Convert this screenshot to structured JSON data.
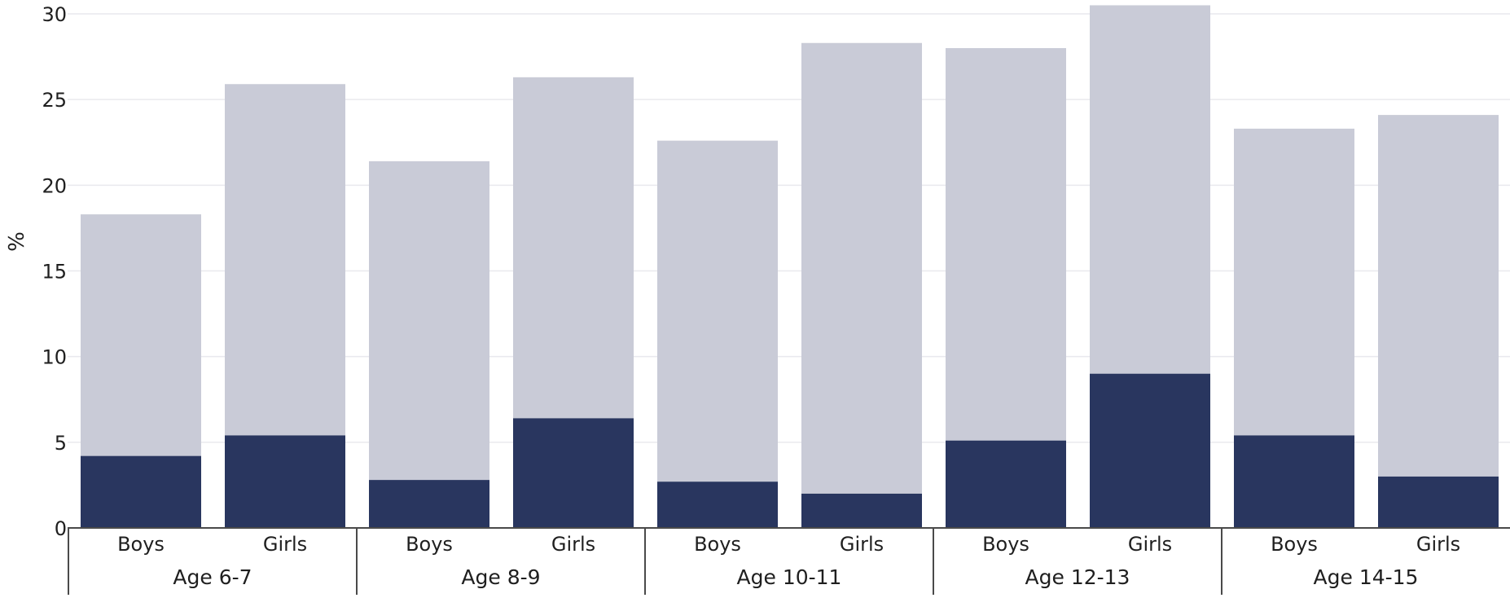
{
  "chart_data": {
    "type": "bar",
    "stacked": true,
    "ylabel": "%",
    "ylim": [
      0,
      30
    ],
    "yticks": [
      0,
      5,
      10,
      15,
      20,
      25,
      30
    ],
    "grid": true,
    "groups": [
      {
        "label": "Age 6-7",
        "bars": [
          {
            "label": "Boys",
            "dark": 4.2,
            "total": 18.3
          },
          {
            "label": "Girls",
            "dark": 5.4,
            "total": 25.9
          }
        ]
      },
      {
        "label": "Age 8-9",
        "bars": [
          {
            "label": "Boys",
            "dark": 2.8,
            "total": 21.4
          },
          {
            "label": "Girls",
            "dark": 6.4,
            "total": 26.3
          }
        ]
      },
      {
        "label": "Age 10-11",
        "bars": [
          {
            "label": "Boys",
            "dark": 2.7,
            "total": 22.6
          },
          {
            "label": "Girls",
            "dark": 2.0,
            "total": 28.3
          }
        ]
      },
      {
        "label": "Age 12-13",
        "bars": [
          {
            "label": "Boys",
            "dark": 5.1,
            "total": 28.0
          },
          {
            "label": "Girls",
            "dark": 9.0,
            "total": 31.0
          }
        ]
      },
      {
        "label": "Age 14-15",
        "bars": [
          {
            "label": "Boys",
            "dark": 5.4,
            "total": 23.3
          },
          {
            "label": "Girls",
            "dark": 3.0,
            "total": 24.1
          }
        ]
      }
    ],
    "colors": {
      "dark": "#29365f",
      "light": "#c9cbd7",
      "grid": "#e9e9ee",
      "axis": "#4a4a4a",
      "text": "#1f1f1f"
    }
  }
}
